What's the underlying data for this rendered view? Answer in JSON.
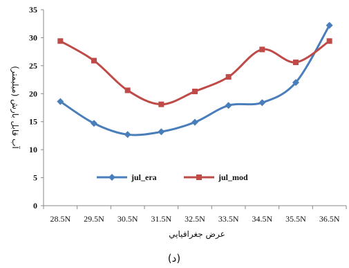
{
  "chart_data": {
    "type": "line",
    "categories": [
      "28.5N",
      "29.5N",
      "30.5N",
      "31.5N",
      "32.5N",
      "33.5N",
      "34.5N",
      "35.5N",
      "36.5N"
    ],
    "series": [
      {
        "name": "jul_era",
        "color": "#4a7ebb",
        "marker": "diamond",
        "values": [
          18.6,
          14.7,
          12.7,
          13.2,
          14.9,
          17.9,
          18.4,
          22.0,
          32.2
        ]
      },
      {
        "name": "jul_mod",
        "color": "#be4b48",
        "marker": "square",
        "values": [
          29.4,
          25.9,
          20.6,
          18.1,
          20.4,
          23.0,
          27.9,
          25.6,
          29.4
        ]
      }
    ],
    "title": "",
    "xlabel": "عرض جغرافيايي",
    "ylabel": "آب قابل بارش (ميليمتر)",
    "ylim": [
      0,
      35
    ],
    "yticks": [
      0,
      5,
      10,
      15,
      20,
      25,
      30,
      35
    ],
    "grid": false,
    "legend_position": "center-right",
    "caption": "(د)"
  }
}
